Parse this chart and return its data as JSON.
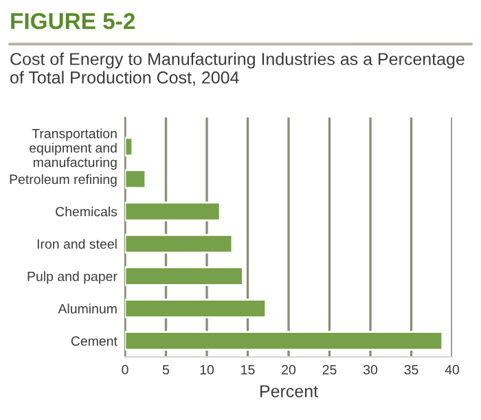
{
  "chart_data": {
    "type": "bar",
    "orientation": "horizontal",
    "title": "FIGURE 5-2",
    "subtitle": "Cost of Energy to Manufacturing Industries as a Percentage of Total Production Cost, 2004",
    "categories": [
      "Transportation equipment and manufacturing",
      "Petroleum refining",
      "Chemicals",
      "Iron and steel",
      "Pulp and paper",
      "Aluminum",
      "Cement"
    ],
    "values": [
      0.9,
      2.5,
      11.6,
      13.1,
      14.4,
      17.2,
      38.8
    ],
    "color": "#77a04a",
    "xlabel": "Percent",
    "xlim": [
      0,
      40
    ],
    "xticks": [
      0,
      5,
      10,
      15,
      20,
      25,
      30,
      35,
      40
    ],
    "grid": "x"
  }
}
